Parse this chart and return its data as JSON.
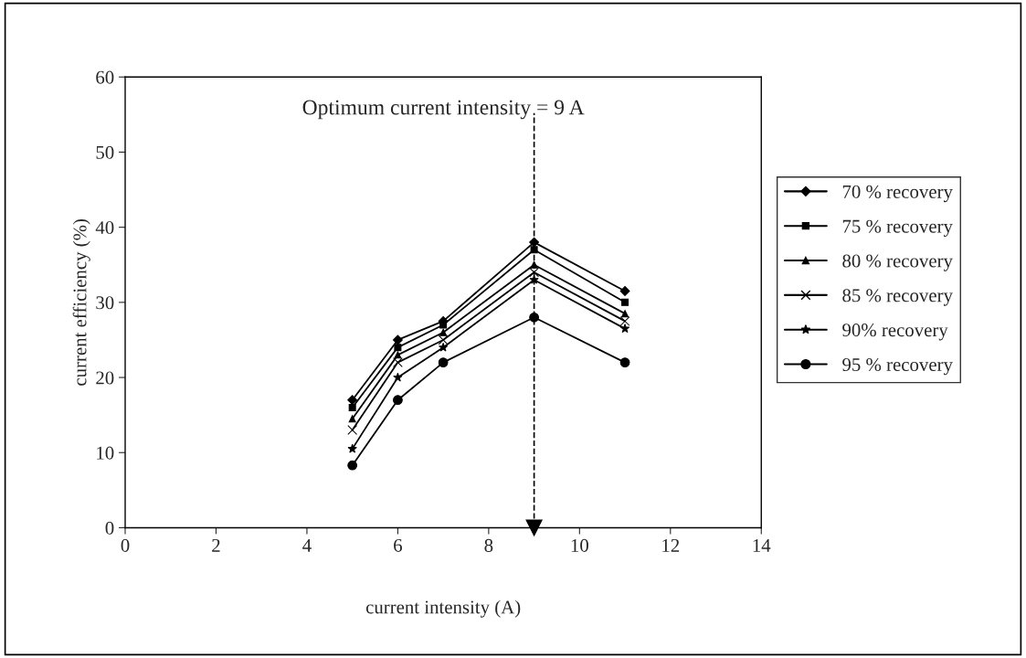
{
  "chart_data": {
    "type": "line",
    "xlabel": "current intensity (A)",
    "ylabel": "current efficiency (%)",
    "x": [
      5,
      6,
      7,
      9,
      11
    ],
    "series": [
      {
        "name": "70 % recovery",
        "color": "#000000",
        "marker": "diamond",
        "values": [
          17,
          25,
          27.5,
          38,
          31.5
        ]
      },
      {
        "name": "75 % recovery",
        "color": "#000000",
        "marker": "square",
        "values": [
          16,
          24,
          27,
          37,
          30
        ]
      },
      {
        "name": "80 % recovery",
        "color": "#000000",
        "marker": "triangle",
        "values": [
          14.5,
          23,
          26,
          35,
          28.5
        ]
      },
      {
        "name": "85 % recovery",
        "color": "#000000",
        "marker": "cross",
        "values": [
          13,
          22,
          25,
          34,
          27.5
        ]
      },
      {
        "name": "90% recovery",
        "color": "#000000",
        "marker": "star",
        "values": [
          10.5,
          20,
          24,
          33,
          26.5
        ]
      },
      {
        "name": "95 % recovery",
        "color": "#000000",
        "marker": "circle",
        "values": [
          8.3,
          17,
          22,
          28,
          22
        ]
      }
    ],
    "ref_lines": [
      {
        "axis": "x",
        "value": 9,
        "label": "Optimum current intensity = 9 A",
        "color": "#000000",
        "line_style": "dashed"
      }
    ],
    "xlim": [
      0,
      14
    ],
    "xticks": [
      0,
      2,
      4,
      6,
      8,
      10,
      12,
      14
    ],
    "ylim": [
      0,
      60
    ],
    "yticks": [
      0,
      10,
      20,
      30,
      40,
      50,
      60
    ],
    "grid": false,
    "legend": "right",
    "line_style": "solid"
  }
}
